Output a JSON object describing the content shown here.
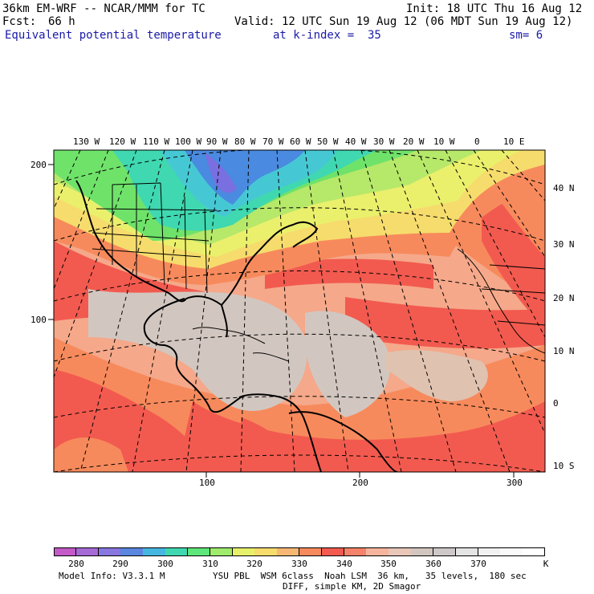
{
  "header": {
    "title_left": "36km EM-WRF -- NCAR/MMM for TC",
    "init": "Init: 18 UTC Thu 16 Aug 12",
    "fcst_label": "Fcst:",
    "fcst_value": "66 h",
    "valid": "Valid: 12 UTC Sun 19 Aug 12 (06 MDT Sun 19 Aug 12)",
    "field": "Equivalent potential temperature",
    "level": "at k-index =  35",
    "smoothing": "sm= 6"
  },
  "map": {
    "top_lon_labels": [
      "130 W",
      "120 W",
      "110 W",
      "100 W",
      "90 W",
      "80 W",
      "70 W",
      "60 W",
      "50 W",
      "40 W",
      "30 W",
      "20 W",
      "10 W",
      "0",
      "10 E"
    ],
    "right_lat_labels": [
      "40 N",
      "30 N",
      "20 N",
      "10 N",
      "0",
      "10 S"
    ],
    "left_grid_labels": [
      "200",
      "100"
    ],
    "bottom_grid_labels": [
      "100",
      "200",
      "300"
    ],
    "colors": {
      "sea_cool": "#d2c7c0",
      "warm_peach": "#f5a88a",
      "hot_red": "#f25a4f",
      "orange": "#f78a5c",
      "yellow": "#f6dc6c",
      "light_yellow": "#eaf06c",
      "lime": "#b6e86a",
      "green": "#6fe26a",
      "teal": "#3fd8b0",
      "cyan": "#46c8d4",
      "blue": "#4a8ae0",
      "violet": "#7a6fe0",
      "coast": "#000000"
    }
  },
  "colorbar": {
    "colors": [
      "#c35ac8",
      "#a66ad6",
      "#8877e0",
      "#5a86e0",
      "#46b7e0",
      "#3fd8b0",
      "#5ee67a",
      "#9fec6c",
      "#e6f06a",
      "#f6dc6c",
      "#f7b873",
      "#f78a5c",
      "#f25a4f",
      "#f5826a",
      "#f5b59c",
      "#e8c7b8",
      "#d2c7c0",
      "#cdc9c8",
      "#e4e4e4",
      "#f1f1f1",
      "#fafafa",
      "#ffffff"
    ],
    "labels": [
      "280",
      "290",
      "300",
      "310",
      "320",
      "330",
      "340",
      "350",
      "360",
      "370"
    ],
    "unit": "K"
  },
  "footer": {
    "model_info": "Model Info: V3.3.1 M",
    "physics": "YSU PBL  WSM 6class  Noah LSM  36 km,   35 levels,  180 sec",
    "diff": "DIFF, simple KM, 2D Smagor"
  }
}
